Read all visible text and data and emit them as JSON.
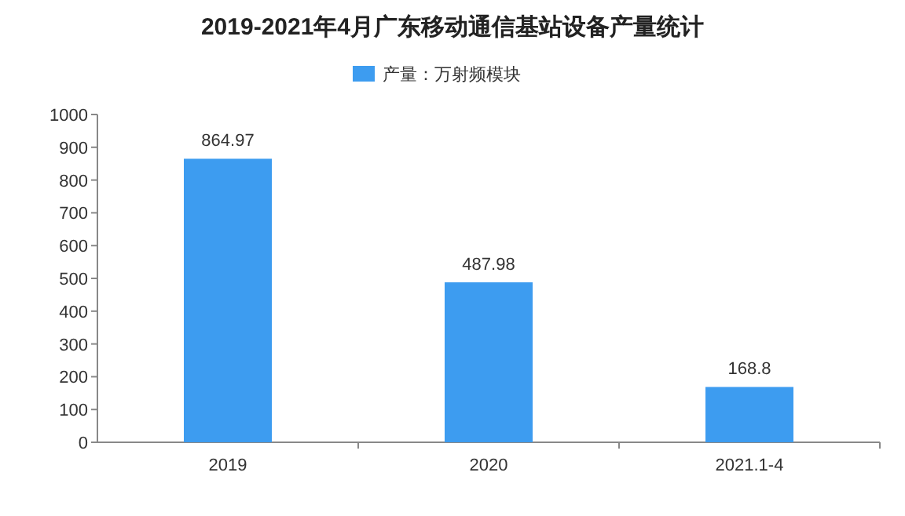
{
  "chart_data": {
    "type": "bar",
    "title": "2019-2021年4月广东移动通信基站设备产量统计",
    "categories": [
      "2019",
      "2020",
      "2021.1-4"
    ],
    "series": [
      {
        "name": "产量：万射频模块",
        "color": "#3d9cf0",
        "values": [
          864.97,
          487.98,
          168.8
        ]
      }
    ],
    "ylim": [
      0,
      1000
    ],
    "yticks": [
      0,
      100,
      200,
      300,
      400,
      500,
      600,
      700,
      800,
      900,
      1000
    ],
    "data_labels": true,
    "legend": "top",
    "grid": false
  }
}
